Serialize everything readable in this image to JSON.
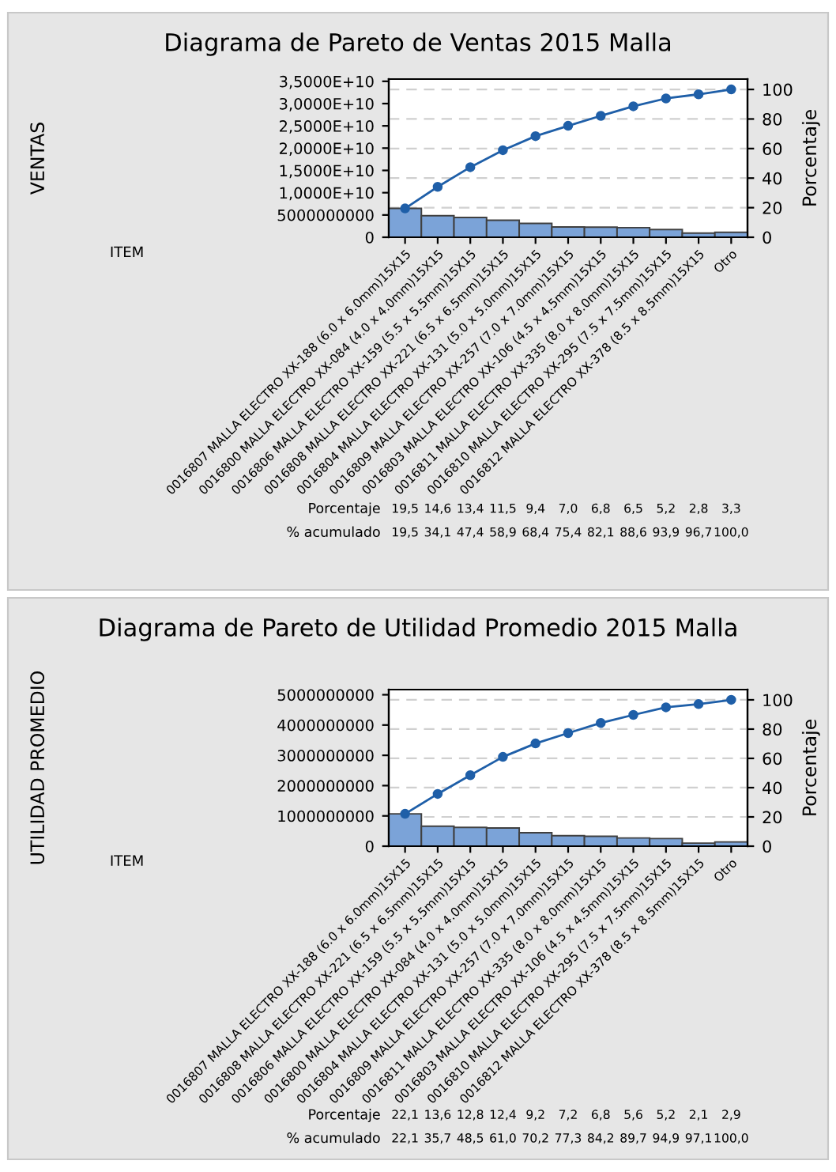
{
  "chart_data": [
    {
      "type": "bar",
      "title": "Diagrama de Pareto de Ventas 2015 Malla",
      "annotations": [
        "Porcentaje",
        "% acumulado"
      ],
      "xlabel": "ITEM",
      "ylabel": "VENTAS",
      "y2label": "Porcentaje",
      "categories": [
        "0016807 MALLA ELECTRO XX-188 (6.0 x 6.0mm)15X15",
        "0016800 MALLA ELECTRO XX-084 (4.0 x 4.0mm)15X15",
        "0016806 MALLA ELECTRO XX-159 (5.5 x 5.5mm)15X15",
        "0016808 MALLA ELECTRO XX-221 (6.5 x 6.5mm)15X15",
        "0016804 MALLA ELECTRO XX-131 (5.0 x 5.0mm)15X15",
        "0016809 MALLA ELECTRO XX-257 (7.0 x 7.0mm)15X15",
        "0016803 MALLA ELECTRO XX-106 (4.5 x 4.5mm)15X15",
        "0016811 MALLA ELECTRO XX-335 (8.0 x 8.0mm)15X15",
        "0016810 MALLA ELECTRO XX-295 (7.5 x 7.5mm)15X15",
        "0016812 MALLA ELECTRO XX-378 (8.5 x 8.5mm)15X15",
        "Otro"
      ],
      "series": [
        {
          "type": "bar",
          "axis": "y2",
          "color": "#7ba3d8",
          "values": [
            19.5,
            14.6,
            13.4,
            11.5,
            9.4,
            7.0,
            6.8,
            6.5,
            5.2,
            2.8,
            3.3
          ],
          "value_labels": [
            "19,5",
            "14,6",
            "13,4",
            "11,5",
            "9,4",
            "7,0",
            "6,8",
            "6,5",
            "5,2",
            "2,8",
            "3,3"
          ]
        },
        {
          "type": "line",
          "axis": "y2",
          "color": "#1f5fa8",
          "values": [
            19.5,
            34.1,
            47.4,
            58.9,
            68.4,
            75.4,
            82.1,
            88.6,
            93.9,
            96.7,
            100.0
          ],
          "value_labels": [
            "19,5",
            "34,1",
            "47,4",
            "58,9",
            "68,4",
            "75,4",
            "82,1",
            "88,6",
            "93,9",
            "96,7",
            "100,0"
          ]
        }
      ],
      "ylim": [
        0,
        35500000000
      ],
      "yticks": [
        0,
        5000000000,
        {
          "value": 10000000000,
          "label": "1,0000E+10"
        },
        {
          "value": 15000000000,
          "label": "1,5000E+10"
        },
        {
          "value": 20000000000,
          "label": "2,0000E+10"
        },
        {
          "value": 25000000000,
          "label": "2,5000E+10"
        },
        {
          "value": 30000000000,
          "label": "3,0000E+10"
        },
        {
          "value": 35000000000,
          "label": "3,5000E+10"
        }
      ],
      "y2lim": [
        0,
        107
      ],
      "y2ticks": [
        0,
        20,
        40,
        60,
        80,
        100
      ],
      "grid": true,
      "marker": "circle",
      "line_style": "solid",
      "legend": false
    },
    {
      "type": "bar",
      "title": "Diagrama de Pareto de Utilidad Promedio 2015 Malla",
      "annotations": [
        "Porcentaje",
        "% acumulado"
      ],
      "xlabel": "ITEM",
      "ylabel": "UTILIDAD PROMEDIO",
      "y2label": "Porcentaje",
      "categories": [
        "0016807 MALLA ELECTRO XX-188 (6.0 x 6.0mm)15X15",
        "0016808 MALLA ELECTRO XX-221 (6.5 x 6.5mm)15X15",
        "0016806 MALLA ELECTRO XX-159 (5.5 x 5.5mm)15X15",
        "0016800 MALLA ELECTRO XX-084 (4.0 x 4.0mm)15X15",
        "0016804 MALLA ELECTRO XX-131 (5.0 x 5.0mm)15X15",
        "0016809 MALLA ELECTRO XX-257 (7.0 x 7.0mm)15X15",
        "0016811 MALLA ELECTRO XX-335 (8.0 x 8.0mm)15X15",
        "0016803 MALLA ELECTRO XX-106 (4.5 x 4.5mm)15X15",
        "0016810 MALLA ELECTRO XX-295 (7.5 x 7.5mm)15X15",
        "0016812 MALLA ELECTRO XX-378 (8.5 x 8.5mm)15X15",
        "Otro"
      ],
      "series": [
        {
          "type": "bar",
          "axis": "y2",
          "color": "#7ba3d8",
          "values": [
            22.1,
            13.6,
            12.8,
            12.4,
            9.2,
            7.2,
            6.8,
            5.6,
            5.2,
            2.1,
            2.9
          ],
          "value_labels": [
            "22,1",
            "13,6",
            "12,8",
            "12,4",
            "9,2",
            "7,2",
            "6,8",
            "5,6",
            "5,2",
            "2,1",
            "2,9"
          ]
        },
        {
          "type": "line",
          "axis": "y2",
          "color": "#1f5fa8",
          "values": [
            22.1,
            35.7,
            48.5,
            61.0,
            70.2,
            77.3,
            84.2,
            89.7,
            94.9,
            97.1,
            100.0
          ],
          "value_labels": [
            "22,1",
            "35,7",
            "48,5",
            "61,0",
            "70,2",
            "77,3",
            "84,2",
            "89,7",
            "94,9",
            "97,1",
            "100,0"
          ]
        }
      ],
      "ylim": [
        0,
        5170000000
      ],
      "yticks": [
        0,
        1000000000,
        2000000000,
        3000000000,
        4000000000,
        5000000000
      ],
      "y2lim": [
        0,
        107
      ],
      "y2ticks": [
        0,
        20,
        40,
        60,
        80,
        100
      ],
      "grid": true,
      "marker": "circle",
      "line_style": "solid",
      "legend": false
    }
  ]
}
